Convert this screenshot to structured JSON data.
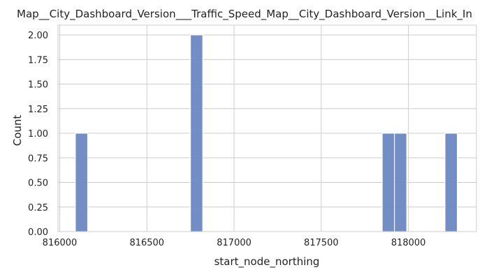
{
  "chart_data": {
    "type": "bar",
    "title": "Map__City_Dashboard_Version___Traffic_Speed_Map__City_Dashboard_Version__Link_In",
    "xlabel": "start_node_northing",
    "ylabel": "Count",
    "xlim": [
      815990,
      818390
    ],
    "ylim": [
      0,
      2.1
    ],
    "x_ticks": [
      "816000",
      "816500",
      "817000",
      "817500",
      "818000"
    ],
    "y_ticks": [
      "0.00",
      "0.25",
      "0.50",
      "0.75",
      "1.00",
      "1.25",
      "1.50",
      "1.75",
      "2.00"
    ],
    "grid": true,
    "bar_color": "#6a88c2",
    "bins": [
      {
        "x0": 816090,
        "x1": 816160,
        "count": 1
      },
      {
        "x0": 816750,
        "x1": 816820,
        "count": 2
      },
      {
        "x0": 817850,
        "x1": 817920,
        "count": 1
      },
      {
        "x0": 817920,
        "x1": 817990,
        "count": 1
      },
      {
        "x0": 818210,
        "x1": 818280,
        "count": 1
      }
    ]
  }
}
